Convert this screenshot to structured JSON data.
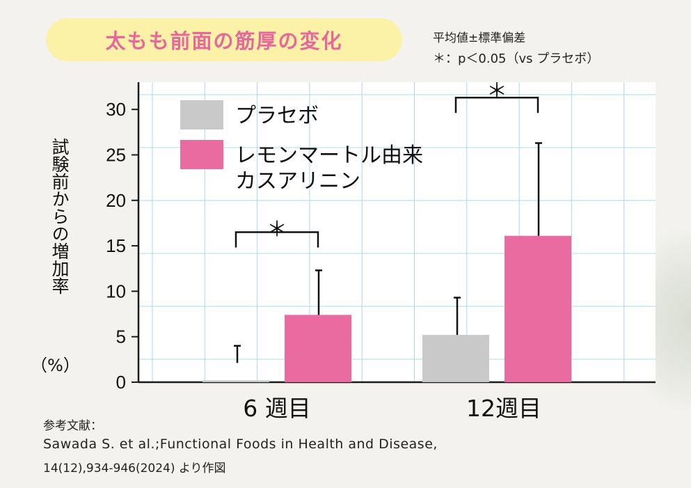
{
  "header": {
    "title": "太もも前面の筋厚の変化",
    "note_line1": "平均値±標準偏差",
    "note_line2": "＊：p＜0.05（vs プラセボ）"
  },
  "reference": {
    "heading": "参考文献：",
    "line1": "Sawada S. et al.;Functional Foods in Health and Disease,",
    "line2": "14(12),934-946(2024) より作図"
  },
  "colors": {
    "placebo": "#c9c9c9",
    "treatment": "#e96ba0",
    "grid": "#a9d8ec",
    "axis": "#1a1a1a"
  },
  "chart_data": {
    "type": "bar",
    "title": "太もも前面の筋厚の変化",
    "ylabel_vertical": "試験前からの増加率",
    "ylabel_unit": "（%）",
    "xlabel": "",
    "ylim": [
      0,
      33
    ],
    "yticks": [
      0,
      5,
      10,
      15,
      20,
      25,
      30
    ],
    "ytick_labels": [
      "0",
      "5",
      "10",
      "15",
      "20",
      "25",
      "30"
    ],
    "grid": true,
    "legend_position": "top-left",
    "categories": [
      "6 週目",
      "12週目"
    ],
    "series": [
      {
        "name": "プラセボ",
        "color_key": "placebo",
        "values": [
          0.2,
          5.2
        ],
        "error_plus": [
          3.8,
          4.1
        ]
      },
      {
        "name": "レモンマートル由来カスアリニン",
        "legend_line1": "レモンマートル由来",
        "legend_line2": "カスアリニン",
        "color_key": "treatment",
        "values": [
          7.4,
          16.1
        ],
        "error_plus": [
          4.9,
          10.2
        ]
      }
    ],
    "significance": [
      {
        "category_index": 0,
        "mark": "＊",
        "label_value": 16.8,
        "bracket_value": 16.5
      },
      {
        "category_index": 1,
        "mark": "＊",
        "label_value": 32.0,
        "bracket_value": 31.3
      }
    ]
  }
}
